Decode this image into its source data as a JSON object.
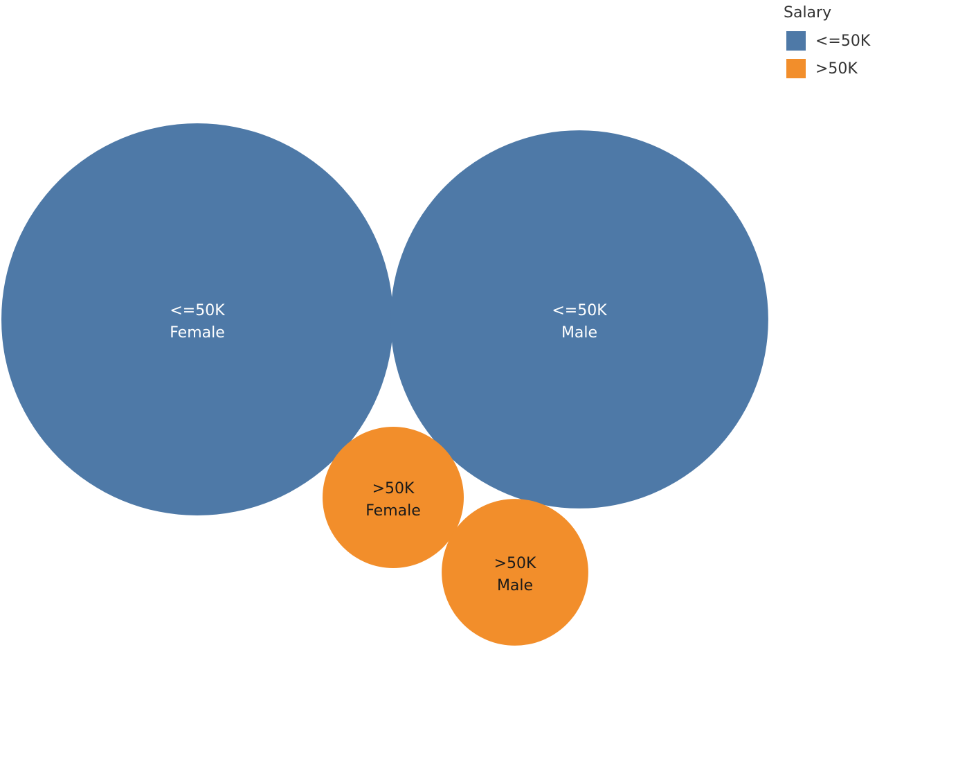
{
  "legend": {
    "title": "Salary",
    "items": [
      {
        "label": "<=50K",
        "color": "#4e79a7"
      },
      {
        "label": ">50K",
        "color": "#f28e2b"
      }
    ]
  },
  "chart_data": {
    "type": "bubble",
    "size_encoding": "area",
    "color_field": "Salary",
    "bubbles": [
      {
        "salary": "<=50K",
        "sex": "Female",
        "relative_size": 1.0,
        "color": "#4e79a7",
        "text_color": "#ffffff"
      },
      {
        "salary": "<=50K",
        "sex": "Male",
        "relative_size": 0.93,
        "color": "#4e79a7",
        "text_color": "#ffffff"
      },
      {
        "salary": ">50K",
        "sex": "Female",
        "relative_size": 0.13,
        "color": "#f28e2b",
        "text_color": "#1a1a1a"
      },
      {
        "salary": ">50K",
        "sex": "Male",
        "relative_size": 0.14,
        "color": "#f28e2b",
        "text_color": "#1a1a1a"
      }
    ]
  }
}
